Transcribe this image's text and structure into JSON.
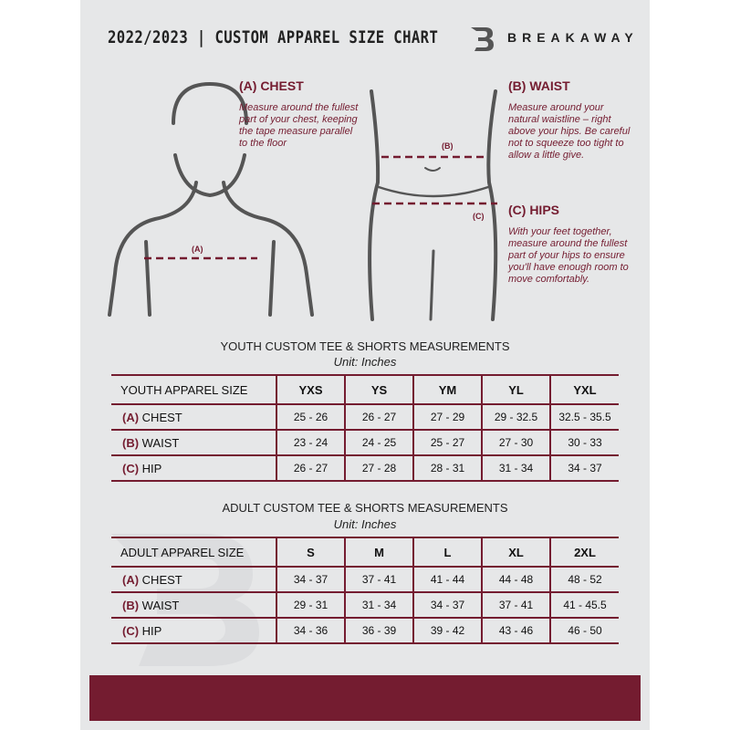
{
  "header": {
    "title": "2022/2023  |  CUSTOM APPAREL SIZE CHART",
    "brand": "BREAKAWAY"
  },
  "sections": {
    "chest": {
      "title": "(A) CHEST",
      "text": "Measure around the fullest part of your chest, keeping the tape measure parallel to the floor",
      "marker": "(A)"
    },
    "waist": {
      "title": "(B) WAIST",
      "text": "Measure around your natural waistline – right above your hips. Be careful not to squeeze too tight to allow a little give.",
      "marker": "(B)"
    },
    "hips": {
      "title": "(C) HIPS",
      "text": "With your feet together, measure around the fullest part of your hips to ensure you'll have enough room to move comfortably.",
      "marker": "(C)"
    }
  },
  "youth": {
    "title": "YOUTH CUSTOM TEE & SHORTS MEASUREMENTS",
    "unit": "Unit: Inches",
    "header": "YOUTH APPAREL SIZE",
    "sizes": [
      "YXS",
      "YS",
      "YM",
      "YL",
      "YXL"
    ],
    "rows": [
      {
        "mark": "(A)",
        "label": "CHEST",
        "values": [
          "25 - 26",
          "26 - 27",
          "27 - 29",
          "29 - 32.5",
          "32.5 - 35.5"
        ]
      },
      {
        "mark": "(B)",
        "label": "WAIST",
        "values": [
          "23 - 24",
          "24 - 25",
          "25 - 27",
          "27 - 30",
          "30 - 33"
        ]
      },
      {
        "mark": "(C)",
        "label": "HIP",
        "values": [
          "26 - 27",
          "27 - 28",
          "28 - 31",
          "31 - 34",
          "34 - 37"
        ]
      }
    ]
  },
  "adult": {
    "title": "ADULT CUSTOM TEE & SHORTS MEASUREMENTS",
    "unit": "Unit: Inches",
    "header": "ADULT APPAREL SIZE",
    "sizes": [
      "S",
      "M",
      "L",
      "XL",
      "2XL"
    ],
    "rows": [
      {
        "mark": "(A)",
        "label": "CHEST",
        "values": [
          "34 - 37",
          "37 - 41",
          "41 - 44",
          "44 - 48",
          "48 - 52"
        ]
      },
      {
        "mark": "(B)",
        "label": "WAIST",
        "values": [
          "29 - 31",
          "31 - 34",
          "34 - 37",
          "37 - 41",
          "41 - 45.5"
        ]
      },
      {
        "mark": "(C)",
        "label": "HIP",
        "values": [
          "34 - 36",
          "36 - 39",
          "39 - 42",
          "43 - 46",
          "46 - 50"
        ]
      }
    ]
  },
  "colors": {
    "accent": "#741c30",
    "background": "#e6e7e8"
  }
}
